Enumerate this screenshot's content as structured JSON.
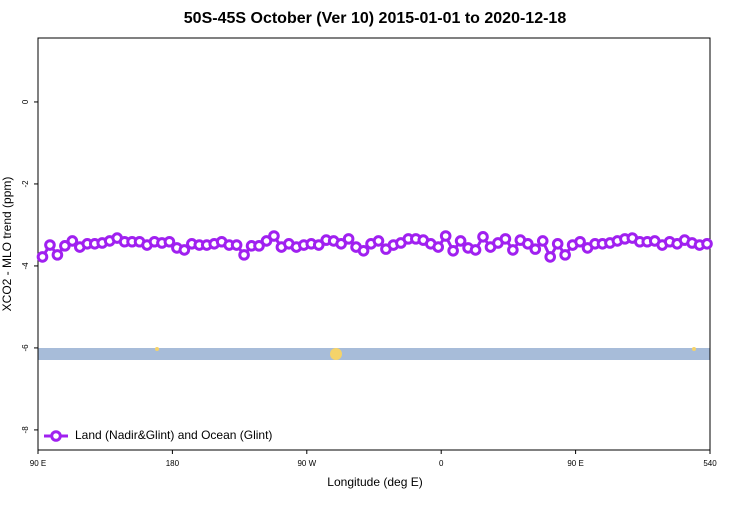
{
  "chart_data": {
    "type": "line",
    "title": "50S-45S October (Ver 10)   2015-01-01 to 2020-12-18",
    "x_label": "Longitude (deg E)",
    "y_label": "XCO2 - MLO trend (ppm)",
    "x": [
      93,
      98,
      103,
      108,
      113,
      118,
      123,
      128,
      133,
      138,
      143,
      148,
      153,
      158,
      163,
      168,
      173,
      178,
      183,
      188,
      193,
      198,
      203,
      208,
      213,
      218,
      223,
      228,
      233,
      238,
      243,
      248,
      253,
      258,
      263,
      268,
      273,
      278,
      283,
      288,
      293,
      298,
      303,
      308,
      313,
      318,
      323,
      328,
      333,
      338,
      343,
      348,
      353,
      358,
      363,
      368,
      373,
      378,
      383,
      388,
      393,
      398,
      403,
      408,
      413,
      418,
      423,
      428,
      433,
      438,
      443,
      448,
      453,
      458,
      463,
      468,
      473,
      478,
      483,
      488,
      493,
      498,
      503,
      508,
      513,
      518,
      523,
      528,
      533,
      538
    ],
    "series": [
      {
        "name": "Land (Nadir&Glint) and Ocean (Glint)",
        "color": "#a020f0",
        "values": [
          -3.78,
          -3.49,
          -3.73,
          -3.51,
          -3.39,
          -3.54,
          -3.46,
          -3.46,
          -3.44,
          -3.39,
          -3.32,
          -3.41,
          -3.41,
          -3.41,
          -3.49,
          -3.41,
          -3.44,
          -3.41,
          -3.56,
          -3.61,
          -3.46,
          -3.49,
          -3.49,
          -3.46,
          -3.41,
          -3.49,
          -3.49,
          -3.73,
          -3.51,
          -3.51,
          -3.39,
          -3.27,
          -3.54,
          -3.46,
          -3.54,
          -3.49,
          -3.46,
          -3.49,
          -3.37,
          -3.39,
          -3.46,
          -3.34,
          -3.54,
          -3.63,
          -3.46,
          -3.39,
          -3.59,
          -3.49,
          -3.44,
          -3.34,
          -3.34,
          -3.37,
          -3.46,
          -3.54,
          -3.27,
          -3.63,
          -3.39,
          -3.56,
          -3.61,
          -3.29,
          -3.54,
          -3.44,
          -3.34,
          -3.61,
          -3.37,
          -3.46,
          -3.59,
          -3.39,
          -3.78,
          -3.46,
          -3.73,
          -3.49,
          -3.41,
          -3.56,
          -3.46,
          -3.46,
          -3.44,
          -3.39,
          -3.34,
          -3.32,
          -3.41,
          -3.41,
          -3.39,
          -3.49,
          -3.41,
          -3.46,
          -3.37,
          -3.44,
          -3.49,
          -3.46
        ]
      }
    ],
    "xlim": [
      90,
      540
    ],
    "xticks": [
      {
        "value": 90,
        "label": "90 E"
      },
      180,
      {
        "value": 270,
        "label": "90 W"
      },
      {
        "value": 360,
        "label": "0"
      },
      {
        "value": 450,
        "label": "90 E"
      },
      540
    ],
    "ylim": [
      -8.49,
      1.56
    ],
    "yticks": [
      0,
      -2,
      -4,
      -6,
      -8
    ],
    "legend": "bottom-left"
  }
}
